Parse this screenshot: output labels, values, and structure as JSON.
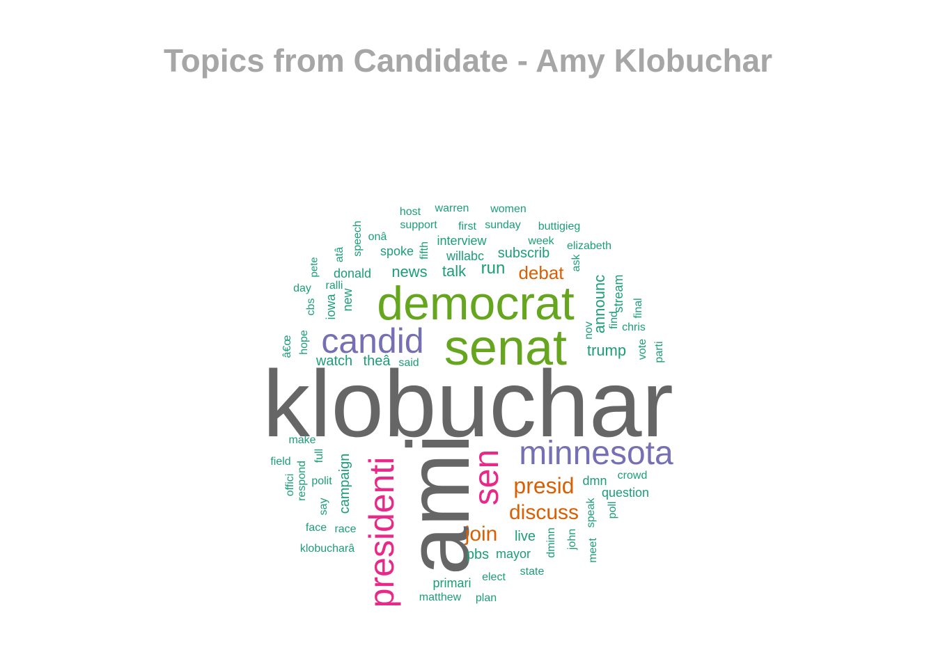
{
  "title": "Topics from Candidate - Amy Klobuchar",
  "palette": {
    "gray": "#666666",
    "green": "#66a61e",
    "purple": "#7570b3",
    "pink": "#e7298a",
    "orange": "#d95f02",
    "teal": "#1b9e77"
  },
  "words": [
    {
      "text": "klobuchar",
      "color": "gray"
    },
    {
      "text": "ami",
      "color": "gray"
    },
    {
      "text": "democrat",
      "color": "green"
    },
    {
      "text": "senat",
      "color": "green"
    },
    {
      "text": "candid",
      "color": "purple"
    },
    {
      "text": "minnesota",
      "color": "purple"
    },
    {
      "text": "presidenti",
      "color": "pink"
    },
    {
      "text": "sen",
      "color": "pink"
    },
    {
      "text": "presid",
      "color": "orange"
    },
    {
      "text": "discuss",
      "color": "orange"
    },
    {
      "text": "join",
      "color": "orange"
    },
    {
      "text": "debat",
      "color": "orange"
    },
    {
      "text": "host",
      "color": "teal"
    },
    {
      "text": "warren",
      "color": "teal"
    },
    {
      "text": "women",
      "color": "teal"
    },
    {
      "text": "support",
      "color": "teal"
    },
    {
      "text": "first",
      "color": "teal"
    },
    {
      "text": "sunday",
      "color": "teal"
    },
    {
      "text": "buttigieg",
      "color": "teal"
    },
    {
      "text": "onâ",
      "color": "teal"
    },
    {
      "text": "interview",
      "color": "teal"
    },
    {
      "text": "week",
      "color": "teal"
    },
    {
      "text": "elizabeth",
      "color": "teal"
    },
    {
      "text": "speech",
      "color": "teal"
    },
    {
      "text": "spoke",
      "color": "teal"
    },
    {
      "text": "fifth",
      "color": "teal"
    },
    {
      "text": "willabc",
      "color": "teal"
    },
    {
      "text": "subscrib",
      "color": "teal"
    },
    {
      "text": "atâ",
      "color": "teal"
    },
    {
      "text": "pete",
      "color": "teal"
    },
    {
      "text": "ask",
      "color": "teal"
    },
    {
      "text": "donald",
      "color": "teal"
    },
    {
      "text": "news",
      "color": "teal"
    },
    {
      "text": "talk",
      "color": "teal"
    },
    {
      "text": "run",
      "color": "teal"
    },
    {
      "text": "day",
      "color": "teal"
    },
    {
      "text": "ralli",
      "color": "teal"
    },
    {
      "text": "cbs",
      "color": "teal"
    },
    {
      "text": "iowa",
      "color": "teal"
    },
    {
      "text": "new",
      "color": "teal"
    },
    {
      "text": "announc",
      "color": "teal"
    },
    {
      "text": "stream",
      "color": "teal"
    },
    {
      "text": "find",
      "color": "teal"
    },
    {
      "text": "final",
      "color": "teal"
    },
    {
      "text": "nov",
      "color": "teal"
    },
    {
      "text": "chris",
      "color": "teal"
    },
    {
      "text": "hope",
      "color": "teal"
    },
    {
      "text": "â€œ",
      "color": "teal"
    },
    {
      "text": "trump",
      "color": "teal"
    },
    {
      "text": "vote",
      "color": "teal"
    },
    {
      "text": "parti",
      "color": "teal"
    },
    {
      "text": "watch",
      "color": "teal"
    },
    {
      "text": "theâ",
      "color": "teal"
    },
    {
      "text": "said",
      "color": "teal"
    },
    {
      "text": "make",
      "color": "teal"
    },
    {
      "text": "field",
      "color": "teal"
    },
    {
      "text": "full",
      "color": "teal"
    },
    {
      "text": "campaign",
      "color": "teal"
    },
    {
      "text": "respond",
      "color": "teal"
    },
    {
      "text": "offici",
      "color": "teal"
    },
    {
      "text": "polit",
      "color": "teal"
    },
    {
      "text": "say",
      "color": "teal"
    },
    {
      "text": "dmn",
      "color": "teal"
    },
    {
      "text": "crowd",
      "color": "teal"
    },
    {
      "text": "question",
      "color": "teal"
    },
    {
      "text": "speak",
      "color": "teal"
    },
    {
      "text": "poll",
      "color": "teal"
    },
    {
      "text": "face",
      "color": "teal"
    },
    {
      "text": "race",
      "color": "teal"
    },
    {
      "text": "live",
      "color": "teal"
    },
    {
      "text": "dminn",
      "color": "teal"
    },
    {
      "text": "john",
      "color": "teal"
    },
    {
      "text": "meet",
      "color": "teal"
    },
    {
      "text": "klobucharâ",
      "color": "teal"
    },
    {
      "text": "pbs",
      "color": "teal"
    },
    {
      "text": "mayor",
      "color": "teal"
    },
    {
      "text": "elect",
      "color": "teal"
    },
    {
      "text": "state",
      "color": "teal"
    },
    {
      "text": "primari",
      "color": "teal"
    },
    {
      "text": "matthew",
      "color": "teal"
    },
    {
      "text": "plan",
      "color": "teal"
    }
  ]
}
